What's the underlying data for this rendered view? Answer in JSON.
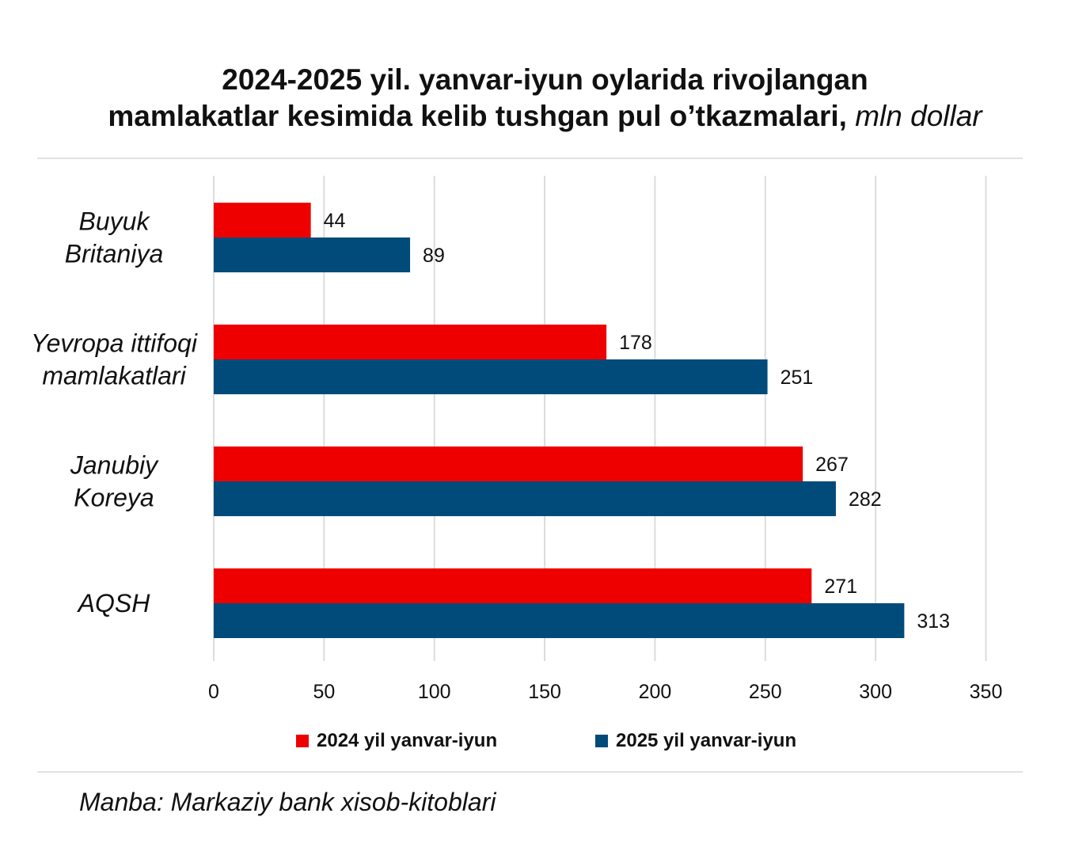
{
  "title": {
    "line1": "2024-2025 yil. yanvar-iyun oylarida rivojlangan",
    "line2": "mamlakatlar kesimida kelib tushgan pul o’tkazmalari,",
    "unit": "mln dollar"
  },
  "source": "Manba: Markaziy bank xisob-kitoblari",
  "colors": {
    "series_2024": "#ee0000",
    "series_2025": "#004b7a",
    "grid": "#dcdcdc"
  },
  "chart_data": {
    "type": "bar",
    "orientation": "horizontal",
    "categories": [
      [
        "Buyuk",
        "Britaniya"
      ],
      [
        "Yevropa ittifoqi",
        "mamlakatlari"
      ],
      [
        "Janubiy",
        "Koreya"
      ],
      [
        "AQSH"
      ]
    ],
    "series": [
      {
        "name": "2024 yil yanvar-iyun",
        "color": "#ee0000",
        "values": [
          44,
          178,
          267,
          271
        ]
      },
      {
        "name": "2025 yil yanvar-iyun",
        "color": "#004b7a",
        "values": [
          89,
          251,
          282,
          313
        ]
      }
    ],
    "x_ticks": [
      "0",
      "50",
      "100",
      "150",
      "200",
      "250",
      "300",
      "350"
    ],
    "xlim": [
      0,
      350
    ],
    "grid": true,
    "legend_position": "bottom"
  }
}
